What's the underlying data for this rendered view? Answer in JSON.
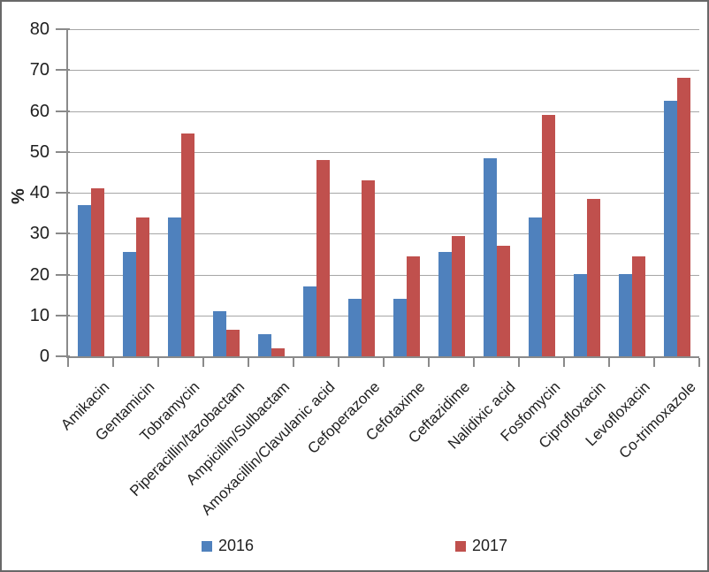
{
  "chart_data": {
    "type": "bar",
    "ylabel": "%",
    "ylim": [
      0,
      80
    ],
    "ytick_step": 10,
    "grid": true,
    "legend_position": "bottom",
    "categories": [
      "Amikacin",
      "Gentamicin",
      "Tobramycin",
      "Piperacillin/tazobactam",
      "Ampicillin/Sulbactam",
      "Amoxacillin/Clavulanic acid",
      "Cefoperazone",
      "Cefotaxime",
      "Ceftazidime",
      "Nalidixic acid",
      "Fosfomycin",
      "Ciprofloxacin",
      "Levofloxacin",
      "Co-trimoxazole"
    ],
    "series": [
      {
        "name": "2016",
        "color": "#4F81BD",
        "values": [
          37,
          25.5,
          34,
          11,
          5.5,
          17,
          14,
          14,
          25.5,
          48.5,
          34,
          20,
          20,
          62.5
        ]
      },
      {
        "name": "2017",
        "color": "#C0504D",
        "values": [
          41,
          34,
          54.5,
          6.5,
          2,
          48,
          43,
          24.5,
          29.5,
          27,
          59,
          38.5,
          24.5,
          68
        ]
      }
    ]
  },
  "colors": {
    "axis": "#8a8a8a",
    "gridline": "#a6a6a6",
    "text": "#1f1f1f",
    "frame_border": "#686868",
    "background": "#ffffff"
  }
}
